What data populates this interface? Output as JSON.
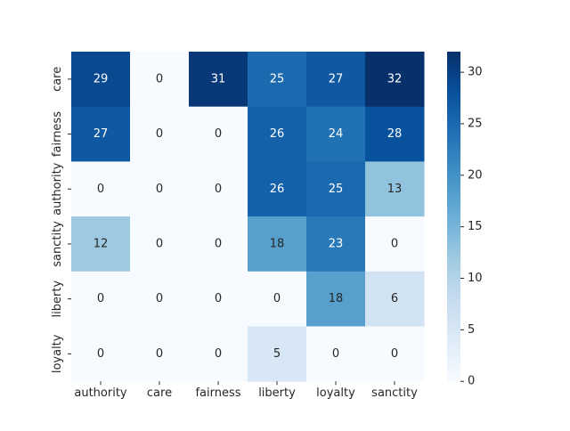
{
  "chart_data": {
    "type": "heatmap",
    "title": "",
    "xlabel": "",
    "ylabel": "",
    "colormap": "Blues",
    "x_categories": [
      "authority",
      "care",
      "fairness",
      "liberty",
      "loyalty",
      "sanctity"
    ],
    "y_categories": [
      "care",
      "fairness",
      "authority",
      "sanctity",
      "liberty",
      "loyalty"
    ],
    "values": [
      [
        29,
        0,
        31,
        25,
        27,
        32
      ],
      [
        27,
        0,
        0,
        26,
        24,
        28
      ],
      [
        0,
        0,
        0,
        26,
        25,
        13
      ],
      [
        12,
        0,
        0,
        18,
        23,
        0
      ],
      [
        0,
        0,
        0,
        0,
        18,
        6
      ],
      [
        0,
        0,
        0,
        5,
        0,
        0
      ]
    ],
    "annotate": true,
    "vmin": 0,
    "vmax": 32,
    "colorbar": {
      "ticks": [
        0,
        5,
        10,
        15,
        20,
        25,
        30
      ]
    }
  }
}
